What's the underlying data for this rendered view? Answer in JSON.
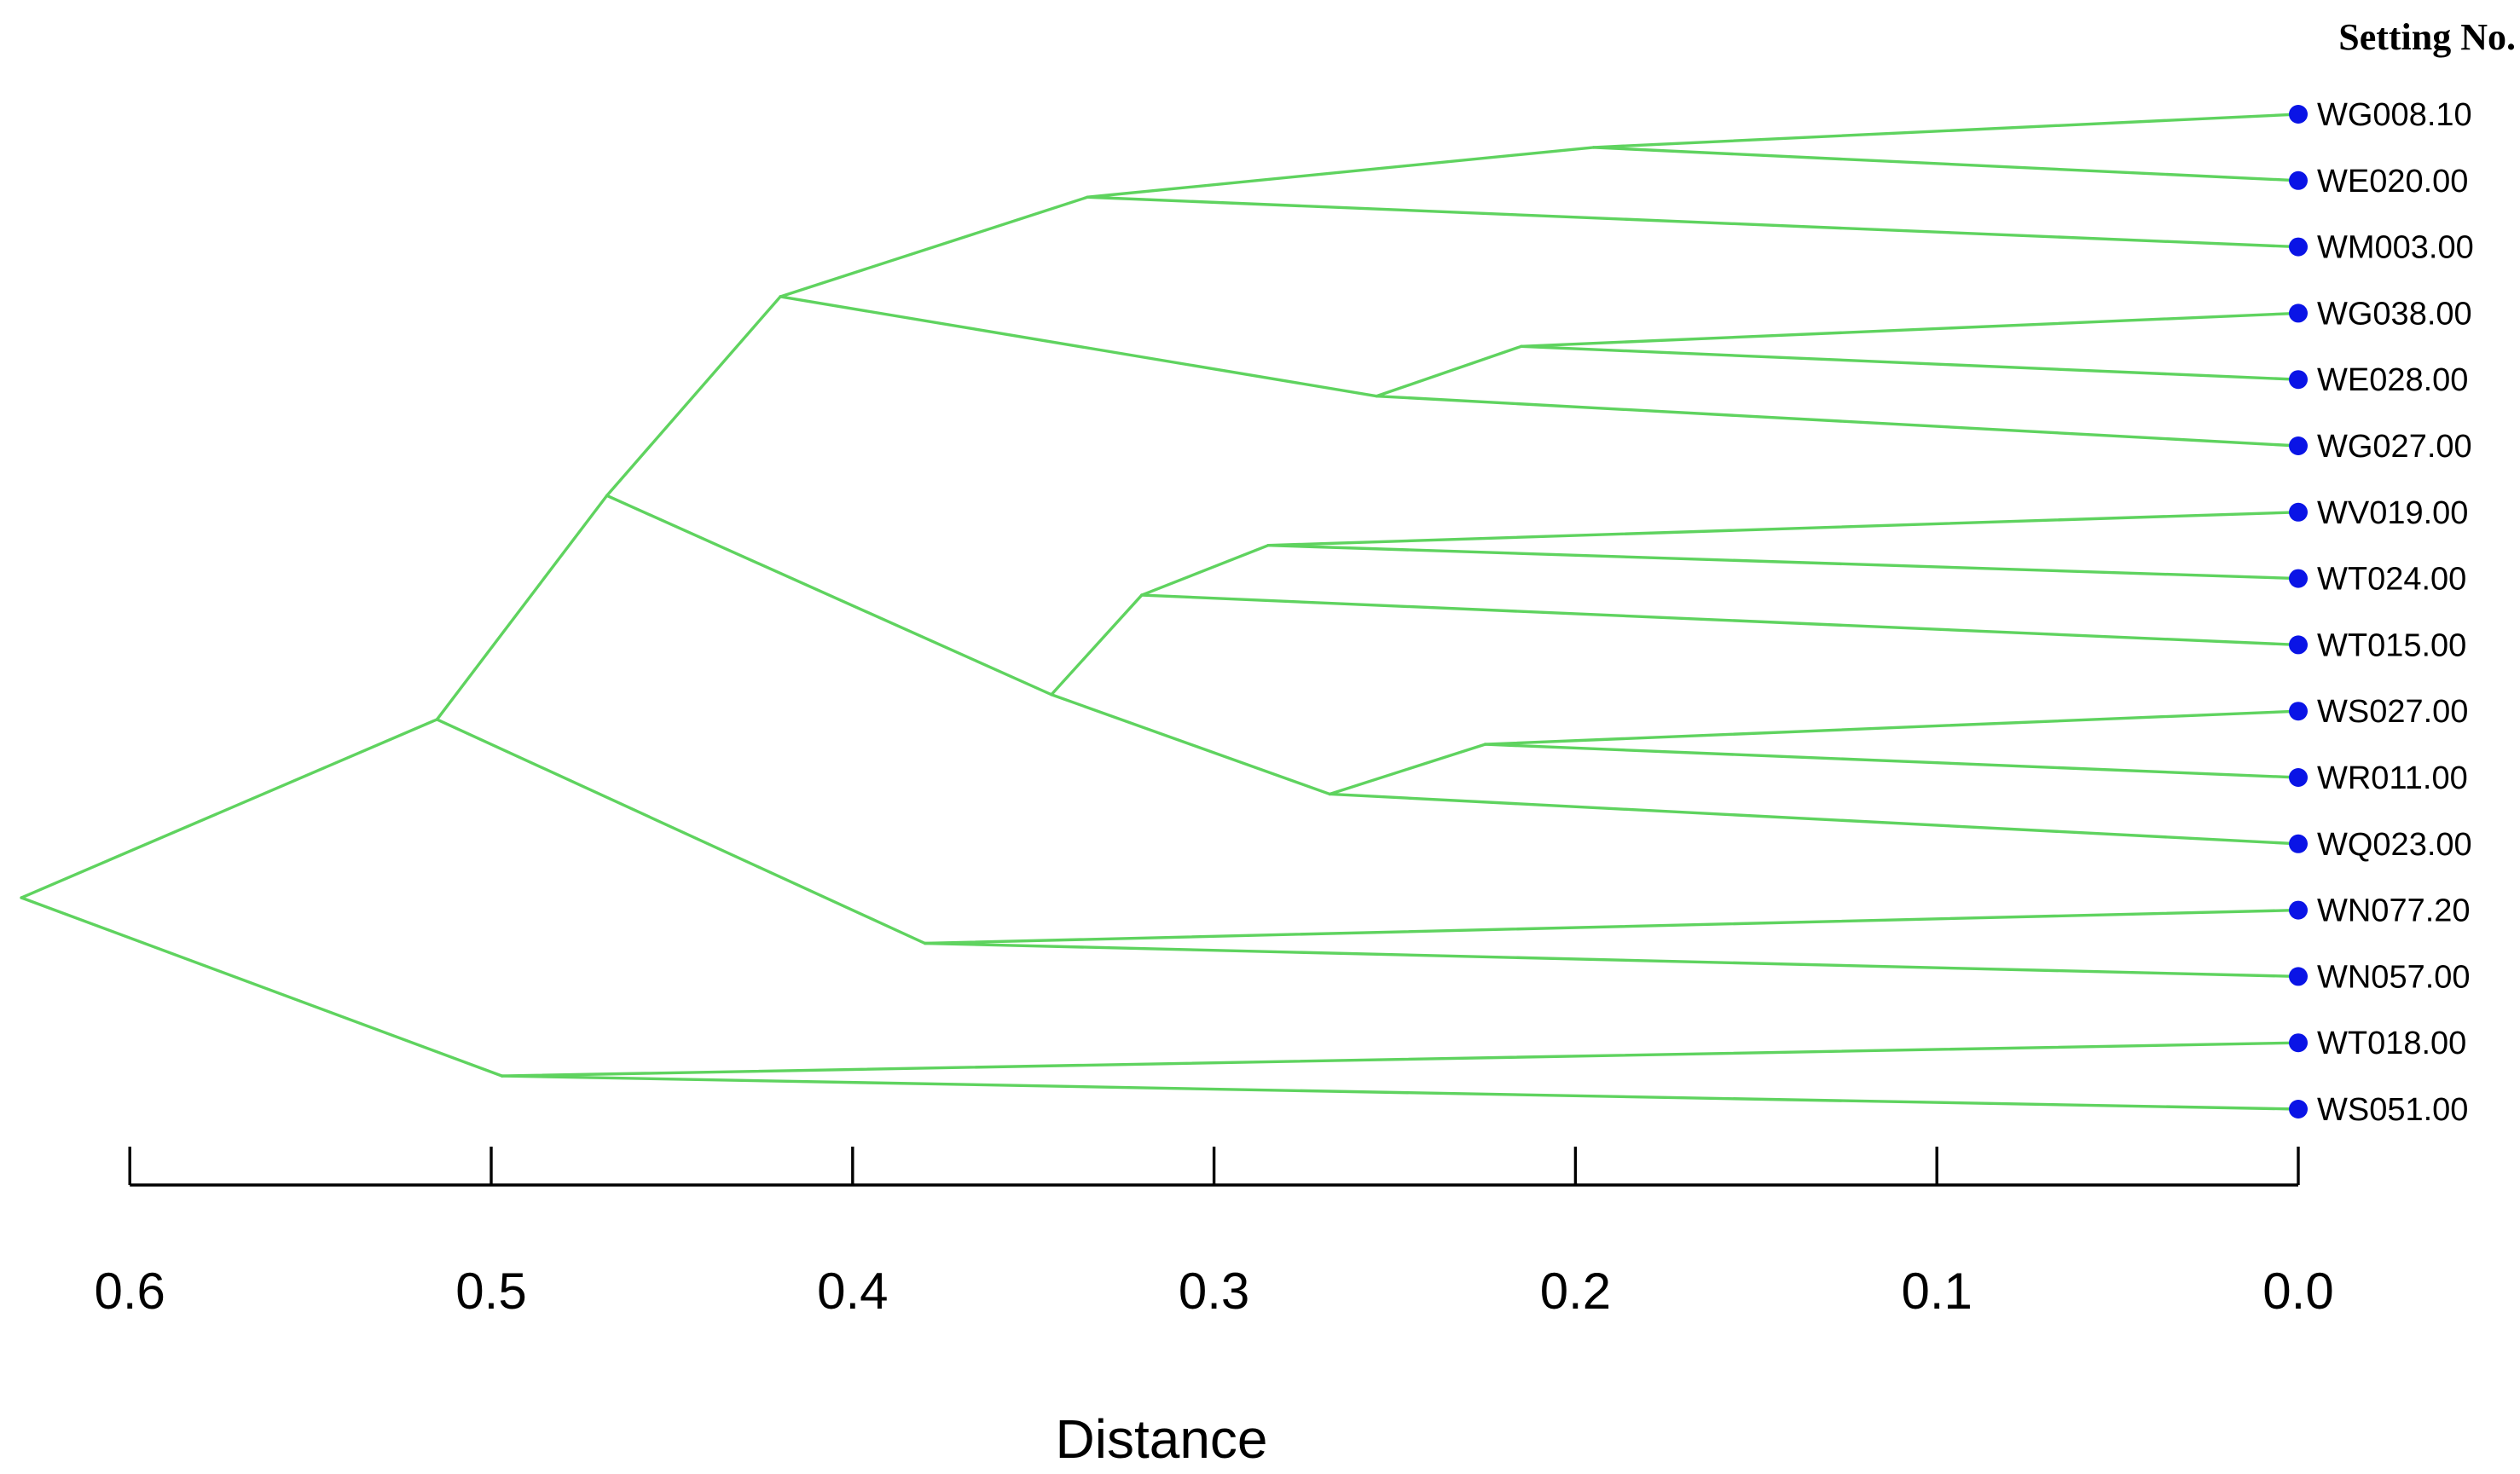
{
  "legend": {
    "title": "Setting No."
  },
  "axis": {
    "title": "Distance",
    "ticks": [
      {
        "value": 0.6,
        "label": "0.6"
      },
      {
        "value": 0.5,
        "label": "0.5"
      },
      {
        "value": 0.4,
        "label": "0.4"
      },
      {
        "value": 0.3,
        "label": "0.3"
      },
      {
        "value": 0.2,
        "label": "0.2"
      },
      {
        "value": 0.1,
        "label": "0.1"
      },
      {
        "value": 0.0,
        "label": "0.0"
      }
    ]
  },
  "colors": {
    "branch": "#5fd35f",
    "leaf_marker": "#0a14e6",
    "axis": "#000000"
  },
  "leaves": [
    "WG008.10",
    "WE020.00",
    "WM003.00",
    "WG038.00",
    "WE028.00",
    "WG027.00",
    "WV019.00",
    "WT024.00",
    "WT015.00",
    "WS027.00",
    "WR011.00",
    "WQ023.00",
    "WN077.20",
    "WN057.00",
    "WT018.00",
    "WS051.00"
  ],
  "chart_data": {
    "type": "dendrogram",
    "orientation": "leaves-right",
    "xlabel": "Distance",
    "xlim": [
      0.6,
      0.0
    ],
    "merges": [
      {
        "id": "n1",
        "height": 0.195,
        "children": [
          "WG008.10",
          "WE020.00"
        ]
      },
      {
        "id": "n2",
        "height": 0.335,
        "children": [
          "n1",
          "WM003.00"
        ]
      },
      {
        "id": "n3",
        "height": 0.215,
        "children": [
          "WG038.00",
          "WE028.00"
        ]
      },
      {
        "id": "n4",
        "height": 0.255,
        "children": [
          "n3",
          "WG027.00"
        ]
      },
      {
        "id": "n5",
        "height": 0.42,
        "children": [
          "n2",
          "n4"
        ]
      },
      {
        "id": "n6",
        "height": 0.285,
        "children": [
          "WV019.00",
          "WT024.00"
        ]
      },
      {
        "id": "n7",
        "height": 0.32,
        "children": [
          "n6",
          "WT015.00"
        ]
      },
      {
        "id": "n8",
        "height": 0.225,
        "children": [
          "WS027.00",
          "WR011.00"
        ]
      },
      {
        "id": "n9",
        "height": 0.268,
        "children": [
          "n8",
          "WQ023.00"
        ]
      },
      {
        "id": "n10",
        "height": 0.345,
        "children": [
          "n7",
          "n9"
        ]
      },
      {
        "id": "n11",
        "height": 0.468,
        "children": [
          "n5",
          "n10"
        ]
      },
      {
        "id": "n12",
        "height": 0.38,
        "children": [
          "WN077.20",
          "WN057.00"
        ]
      },
      {
        "id": "n13",
        "height": 0.515,
        "children": [
          "n11",
          "n12"
        ]
      },
      {
        "id": "n14",
        "height": 0.497,
        "children": [
          "WT018.00",
          "WS051.00"
        ]
      },
      {
        "id": "n15",
        "height": 0.63,
        "children": [
          "n13",
          "n14"
        ]
      }
    ]
  }
}
